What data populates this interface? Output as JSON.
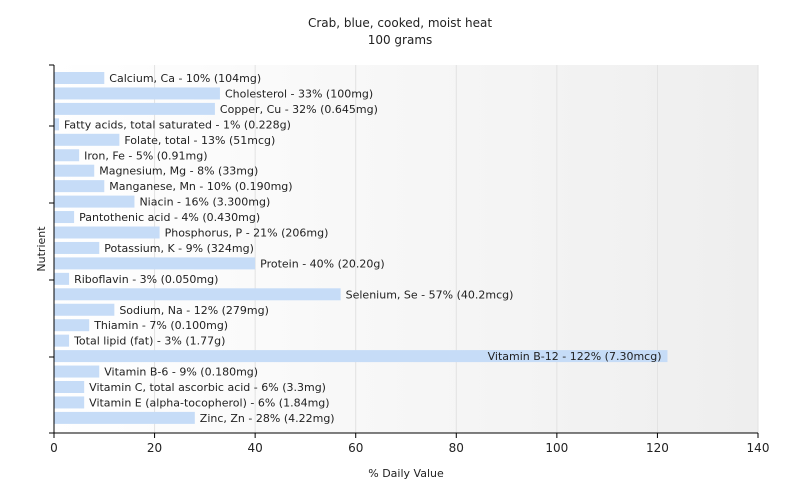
{
  "chart_data": {
    "type": "bar",
    "orientation": "horizontal",
    "title": "Crab, blue, cooked, moist heat",
    "subtitle": "100 grams",
    "xlabel": "% Daily Value",
    "ylabel": "Nutrient",
    "xlim": [
      0,
      140
    ],
    "xticks": [
      0,
      20,
      40,
      60,
      80,
      100,
      120,
      140
    ],
    "grid": true,
    "colors": {
      "bar": "#c6dcf7",
      "grid": "#e2e2e2",
      "background_band": "#f3f3f3"
    },
    "categories": [
      "Calcium, Ca",
      "Cholesterol",
      "Copper, Cu",
      "Fatty acids, total saturated",
      "Folate, total",
      "Iron, Fe",
      "Magnesium, Mg",
      "Manganese, Mn",
      "Niacin",
      "Pantothenic acid",
      "Phosphorus, P",
      "Potassium, K",
      "Protein",
      "Riboflavin",
      "Selenium, Se",
      "Sodium, Na",
      "Thiamin",
      "Total lipid (fat)",
      "Vitamin B-12",
      "Vitamin B-6",
      "Vitamin C, total ascorbic acid",
      "Vitamin E (alpha-tocopherol)",
      "Zinc, Zn"
    ],
    "values": [
      10,
      33,
      32,
      1,
      13,
      5,
      8,
      10,
      16,
      4,
      21,
      9,
      40,
      3,
      57,
      12,
      7,
      3,
      122,
      9,
      6,
      6,
      28
    ],
    "labels": [
      "Calcium, Ca - 10% (104mg)",
      "Cholesterol - 33% (100mg)",
      "Copper, Cu - 32% (0.645mg)",
      "Fatty acids, total saturated - 1% (0.228g)",
      "Folate, total - 13% (51mcg)",
      "Iron, Fe - 5% (0.91mg)",
      "Magnesium, Mg - 8% (33mg)",
      "Manganese, Mn - 10% (0.190mg)",
      "Niacin - 16% (3.300mg)",
      "Pantothenic acid - 4% (0.430mg)",
      "Phosphorus, P - 21% (206mg)",
      "Potassium, K - 9% (324mg)",
      "Protein - 40% (20.20g)",
      "Riboflavin - 3% (0.050mg)",
      "Selenium, Se - 57% (40.2mcg)",
      "Sodium, Na - 12% (279mg)",
      "Thiamin - 7% (0.100mg)",
      "Total lipid (fat) - 3% (1.77g)",
      "Vitamin B-12 - 122% (7.30mcg)",
      "Vitamin B-6 - 9% (0.180mg)",
      "Vitamin C, total ascorbic acid - 6% (3.3mg)",
      "Vitamin E (alpha-tocopherol) - 6% (1.84mg)",
      "Zinc, Zn - 28% (4.22mg)"
    ]
  }
}
